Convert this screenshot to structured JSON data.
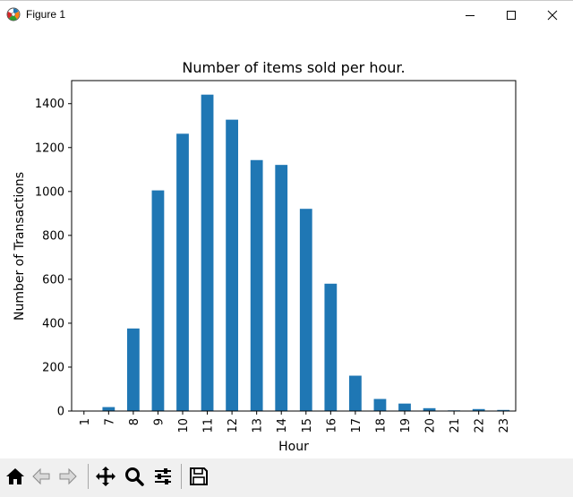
{
  "window": {
    "title": "Figure 1",
    "icon": "matplotlib-figure-icon",
    "controls": [
      "minimize-icon",
      "maximize-icon",
      "close-icon"
    ]
  },
  "toolbar": {
    "buttons": [
      {
        "name": "home",
        "icon": "home-icon"
      },
      {
        "name": "back",
        "icon": "back-arrow-icon"
      },
      {
        "name": "forward",
        "icon": "forward-arrow-icon"
      },
      {
        "name": "pan",
        "icon": "pan-icon"
      },
      {
        "name": "zoom",
        "icon": "zoom-icon"
      },
      {
        "name": "configure-subplots",
        "icon": "sliders-icon"
      },
      {
        "name": "save",
        "icon": "save-icon"
      }
    ]
  },
  "chart_data": {
    "type": "bar",
    "title": "Number of items sold per hour.",
    "xlabel": "Hour",
    "ylabel": "Number of Transactions",
    "categories": [
      "1",
      "7",
      "8",
      "9",
      "10",
      "11",
      "12",
      "13",
      "14",
      "15",
      "16",
      "17",
      "18",
      "19",
      "20",
      "21",
      "22",
      "23"
    ],
    "values": [
      1,
      18,
      376,
      1005,
      1263,
      1441,
      1327,
      1143,
      1121,
      921,
      580,
      161,
      55,
      34,
      13,
      3,
      9,
      5
    ],
    "ylim": [
      0,
      1505
    ],
    "yticks": [
      0,
      200,
      400,
      600,
      800,
      1000,
      1200,
      1400
    ],
    "grid": false,
    "legend": "none",
    "bar_color": "#1f77b4"
  }
}
